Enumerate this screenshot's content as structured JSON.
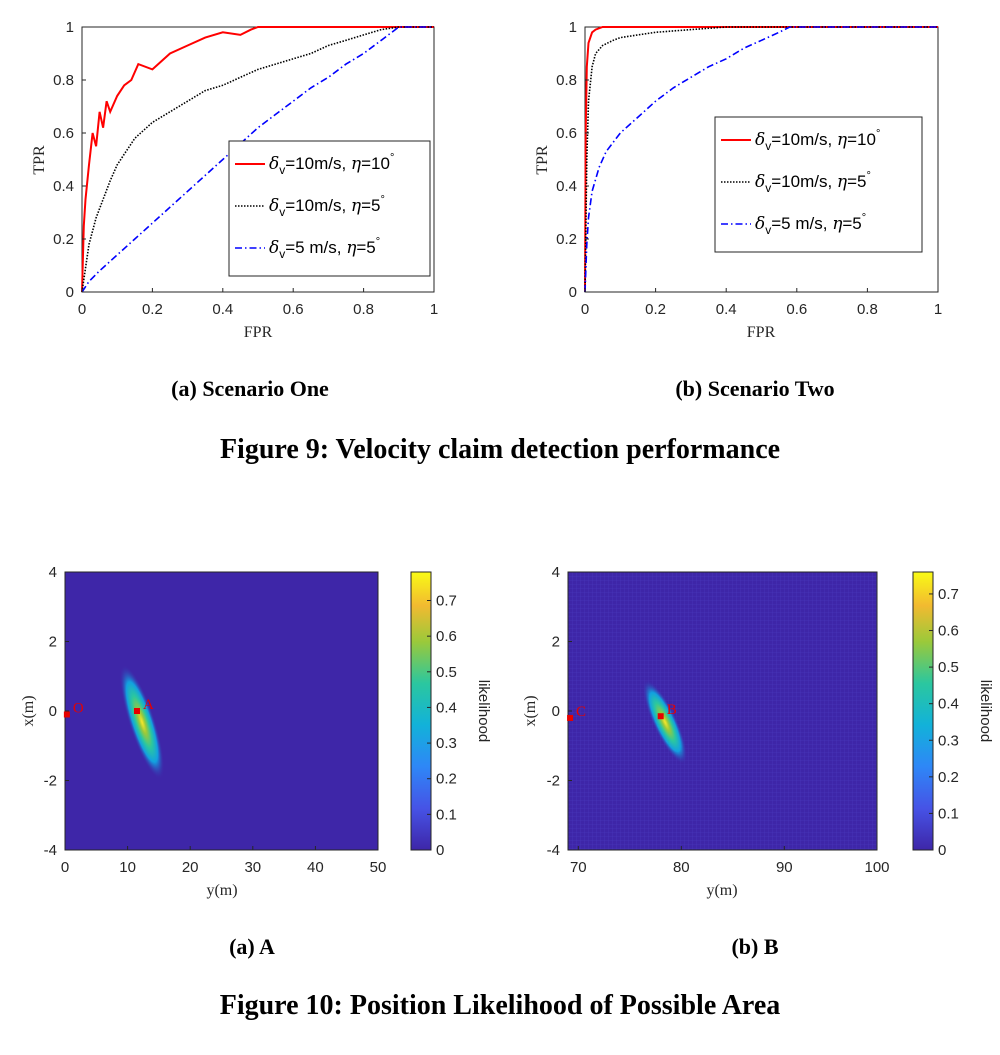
{
  "figure9": {
    "caption": "Figure 9: Velocity claim detection performance",
    "legend_labels": [
      "=10m/s, ",
      "=10m/s,  ",
      "=5 m/s, "
    ],
    "legend_eta": [
      "=10",
      "=5",
      "=5"
    ],
    "panels": [
      {
        "caption": "(a) Scenario One"
      },
      {
        "caption": "(b) Scenario Two"
      }
    ]
  },
  "figure10": {
    "caption": "Figure 10: Position Likelihood of Possible Area",
    "panels": [
      {
        "caption": "(a) A"
      },
      {
        "caption": "(b) B"
      }
    ]
  },
  "chart_data": [
    {
      "type": "line",
      "panel": "(a) Scenario One",
      "xlabel": "FPR",
      "ylabel": "TPR",
      "xlim": [
        0,
        1
      ],
      "ylim": [
        0,
        1
      ],
      "xticks": [
        0,
        0.2,
        0.4,
        0.6,
        0.8,
        1
      ],
      "yticks": [
        0,
        0.2,
        0.4,
        0.6,
        0.8,
        1
      ],
      "legend_position": "lower-right",
      "series": [
        {
          "name": "δv=10m/s, η=10°",
          "color": "#ff0000",
          "style": "solid",
          "x": [
            0,
            0.005,
            0.01,
            0.02,
            0.03,
            0.04,
            0.05,
            0.06,
            0.07,
            0.08,
            0.1,
            0.12,
            0.14,
            0.16,
            0.2,
            0.25,
            0.3,
            0.35,
            0.4,
            0.45,
            0.48,
            0.5,
            0.6,
            0.7,
            0.8,
            0.9,
            1
          ],
          "y": [
            0,
            0.25,
            0.35,
            0.48,
            0.6,
            0.55,
            0.68,
            0.62,
            0.72,
            0.68,
            0.74,
            0.78,
            0.8,
            0.86,
            0.84,
            0.9,
            0.93,
            0.96,
            0.98,
            0.97,
            0.99,
            1,
            1,
            1,
            1,
            1,
            1
          ]
        },
        {
          "name": "δv=10m/s, η=5°",
          "color": "#000000",
          "style": "dotted",
          "x": [
            0,
            0.02,
            0.04,
            0.06,
            0.08,
            0.1,
            0.12,
            0.15,
            0.2,
            0.25,
            0.3,
            0.35,
            0.4,
            0.45,
            0.5,
            0.55,
            0.6,
            0.65,
            0.7,
            0.75,
            0.8,
            0.85,
            0.9,
            1
          ],
          "y": [
            0,
            0.18,
            0.28,
            0.35,
            0.42,
            0.48,
            0.52,
            0.58,
            0.64,
            0.68,
            0.72,
            0.76,
            0.78,
            0.81,
            0.84,
            0.86,
            0.88,
            0.9,
            0.93,
            0.95,
            0.97,
            0.99,
            1,
            1
          ]
        },
        {
          "name": "δv=5 m/s, η=5°",
          "color": "#0000ff",
          "style": "dashdot",
          "x": [
            0,
            0.02,
            0.05,
            0.1,
            0.15,
            0.2,
            0.25,
            0.3,
            0.35,
            0.4,
            0.45,
            0.5,
            0.55,
            0.6,
            0.65,
            0.7,
            0.75,
            0.8,
            0.85,
            0.9,
            1
          ],
          "y": [
            0,
            0.04,
            0.08,
            0.14,
            0.2,
            0.26,
            0.32,
            0.38,
            0.44,
            0.5,
            0.56,
            0.62,
            0.67,
            0.72,
            0.77,
            0.81,
            0.86,
            0.9,
            0.95,
            1,
            1
          ]
        }
      ]
    },
    {
      "type": "line",
      "panel": "(b) Scenario Two",
      "xlabel": "FPR",
      "ylabel": "TPR",
      "xlim": [
        0,
        1
      ],
      "ylim": [
        0,
        1
      ],
      "xticks": [
        0,
        0.2,
        0.4,
        0.6,
        0.8,
        1
      ],
      "yticks": [
        0,
        0.2,
        0.4,
        0.6,
        0.8,
        1
      ],
      "legend_position": "center-right",
      "series": [
        {
          "name": "δv=10m/s, η=10°",
          "color": "#ff0000",
          "style": "solid",
          "x": [
            0,
            0.002,
            0.005,
            0.01,
            0.02,
            0.03,
            0.05,
            0.1,
            0.2,
            0.5,
            1
          ],
          "y": [
            0,
            0.6,
            0.85,
            0.94,
            0.98,
            0.99,
            1,
            1,
            1,
            1,
            1
          ]
        },
        {
          "name": "δv=10m/s, η=5°",
          "color": "#000000",
          "style": "dotted",
          "x": [
            0,
            0.005,
            0.01,
            0.02,
            0.03,
            0.05,
            0.08,
            0.1,
            0.15,
            0.2,
            0.3,
            0.4,
            0.5,
            1
          ],
          "y": [
            0,
            0.5,
            0.72,
            0.85,
            0.9,
            0.93,
            0.95,
            0.96,
            0.97,
            0.98,
            0.99,
            1,
            1,
            1
          ]
        },
        {
          "name": "δv=5 m/s, η=5°",
          "color": "#0000ff",
          "style": "dashdot",
          "x": [
            0,
            0.005,
            0.01,
            0.02,
            0.04,
            0.06,
            0.1,
            0.15,
            0.2,
            0.25,
            0.3,
            0.35,
            0.4,
            0.45,
            0.5,
            0.55,
            0.58,
            1
          ],
          "y": [
            0,
            0.18,
            0.28,
            0.38,
            0.47,
            0.53,
            0.6,
            0.66,
            0.72,
            0.77,
            0.81,
            0.85,
            0.88,
            0.92,
            0.95,
            0.98,
            1,
            1
          ]
        }
      ]
    },
    {
      "type": "heatmap",
      "panel": "(a) A",
      "xlabel": "y(m)",
      "ylabel": "x(m)",
      "xlim": [
        0,
        50
      ],
      "ylim": [
        -4,
        4
      ],
      "xticks": [
        0,
        10,
        20,
        30,
        40,
        50
      ],
      "yticks": [
        -4,
        -2,
        0,
        2,
        4
      ],
      "colorbar_label": "likelihood",
      "colorbar_range": [
        0,
        0.78
      ],
      "colorbar_ticks": [
        0,
        0.1,
        0.2,
        0.3,
        0.4,
        0.5,
        0.6,
        0.7
      ],
      "hotspot": {
        "center": [
          11.5,
          0
        ],
        "peak": 0.78
      },
      "points": [
        {
          "label": "O",
          "x": 0.3,
          "y": -0.1
        },
        {
          "label": "A",
          "x": 11.5,
          "y": 0
        }
      ]
    },
    {
      "type": "heatmap",
      "panel": "(b) B",
      "xlabel": "y(m)",
      "ylabel": "x(m)",
      "xlim": [
        69,
        99
      ],
      "ylim": [
        -4,
        4
      ],
      "xticks": [
        70,
        80,
        90,
        100
      ],
      "yticks": [
        -4,
        -2,
        0,
        2,
        4
      ],
      "colorbar_label": "likelihood",
      "colorbar_range": [
        0,
        0.76
      ],
      "colorbar_ticks": [
        0,
        0.1,
        0.2,
        0.3,
        0.4,
        0.5,
        0.6,
        0.7
      ],
      "hotspot": {
        "center": [
          78,
          -0.15
        ],
        "peak": 0.76
      },
      "points": [
        {
          "label": "C",
          "x": 69.2,
          "y": -0.2
        },
        {
          "label": "B",
          "x": 78,
          "y": -0.15
        }
      ]
    }
  ]
}
